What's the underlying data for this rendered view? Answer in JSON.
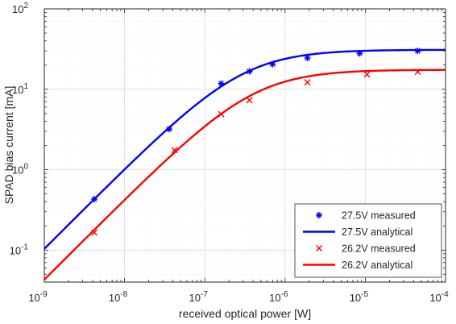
{
  "chart_data": {
    "type": "line",
    "xscale": "log",
    "yscale": "log",
    "xlim": [
      1e-09,
      0.0001
    ],
    "ylim": [
      0.04,
      100
    ],
    "xlabel": "received optical power [W]",
    "ylabel": "SPAD bias current [mA]",
    "grid": true,
    "legend_position": "bottom-right",
    "xticks": [
      {
        "value": 1e-09,
        "base": "10",
        "exp": "-9"
      },
      {
        "value": 1e-08,
        "base": "10",
        "exp": "-8"
      },
      {
        "value": 1e-07,
        "base": "10",
        "exp": "-7"
      },
      {
        "value": 1e-06,
        "base": "10",
        "exp": "-6"
      },
      {
        "value": 1e-05,
        "base": "10",
        "exp": "-5"
      },
      {
        "value": 0.0001,
        "base": "10",
        "exp": "-4"
      }
    ],
    "yticks": [
      {
        "value": 0.1,
        "base": "10",
        "exp": "-1"
      },
      {
        "value": 1,
        "base": "10",
        "exp": "0"
      },
      {
        "value": 10,
        "base": "10",
        "exp": "1"
      },
      {
        "value": 100,
        "base": "10",
        "exp": "2"
      }
    ],
    "series": [
      {
        "name": "27.5V measured",
        "kind": "scatter",
        "marker": "asterisk",
        "color": "#0000FF",
        "x": [
          4.2e-09,
          3.6e-08,
          1.6e-07,
          3.6e-07,
          7e-07,
          1.9e-06,
          8.5e-06,
          4.5e-05
        ],
        "y": [
          0.43,
          3.2,
          11.8,
          16.7,
          20.5,
          24.5,
          28.0,
          30.0
        ]
      },
      {
        "name": "27.5V analytical",
        "kind": "line",
        "color": "#0000FF",
        "isat": 31,
        "ilin": 0.104,
        "x0": 1e-09
      },
      {
        "name": "26.2V measured",
        "kind": "scatter",
        "marker": "cross",
        "color": "#FF0000",
        "x": [
          4.2e-09,
          4.2e-08,
          1.6e-07,
          3.6e-07,
          1.9e-06,
          1.05e-05,
          4.5e-05
        ],
        "y": [
          0.165,
          1.75,
          4.9,
          7.3,
          12.2,
          15.3,
          16.5
        ]
      },
      {
        "name": "26.2V analytical",
        "kind": "line",
        "color": "#FF0000",
        "isat": 17.5,
        "ilin": 0.043,
        "x0": 1e-09
      }
    ]
  }
}
